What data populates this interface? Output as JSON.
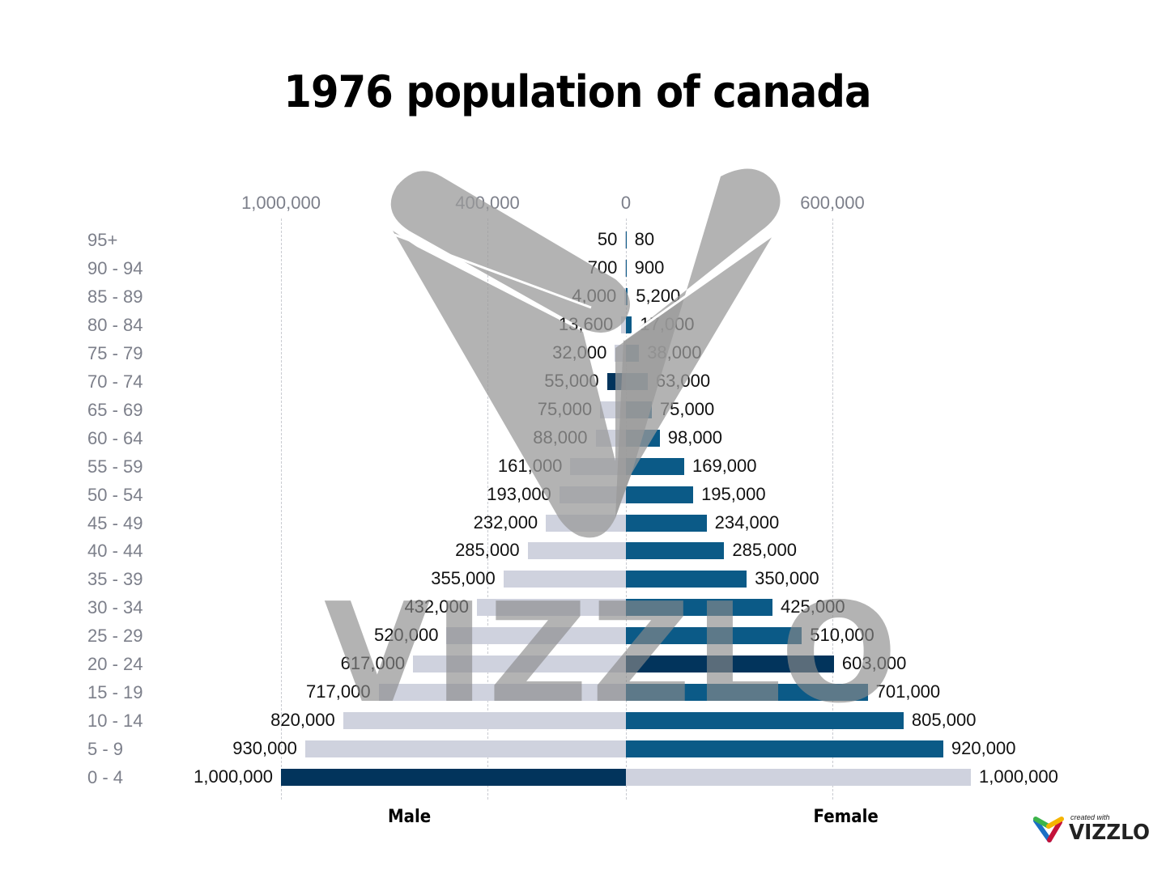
{
  "title": "1976 population of canada",
  "axis": {
    "ticks": [
      {
        "label": "1,000,000",
        "x": 347
      },
      {
        "label": "400,000",
        "x": 602
      },
      {
        "label": "0",
        "x": 773
      },
      {
        "label": "600,000",
        "x": 1028
      }
    ]
  },
  "legend": {
    "male": "Male",
    "female": "Female"
  },
  "colors": {
    "male_bar": "#cfd2de",
    "female_bar": "#0b5a87",
    "highlight_bar": "#02345c",
    "axis_text": "#7c7f8a"
  },
  "branding": {
    "created_with": "created with",
    "name": "VIZZLO",
    "watermark_text": "VIZZLO"
  },
  "rows": [
    {
      "age": "95+",
      "male_label": "50",
      "female_label": "80"
    },
    {
      "age": "90 - 94",
      "male_label": "700",
      "female_label": "900"
    },
    {
      "age": "85 - 89",
      "male_label": "4,000",
      "female_label": "5,200"
    },
    {
      "age": "80 - 84",
      "male_label": "13,600",
      "female_label": "17,000"
    },
    {
      "age": "75 - 79",
      "male_label": "32,000",
      "female_label": "38,000"
    },
    {
      "age": "70 - 74",
      "male_label": "55,000",
      "female_label": "63,000"
    },
    {
      "age": "65 - 69",
      "male_label": "75,000",
      "female_label": "75,000"
    },
    {
      "age": "60 - 64",
      "male_label": "88,000",
      "female_label": "98,000"
    },
    {
      "age": "55 - 59",
      "male_label": "161,000",
      "female_label": "169,000"
    },
    {
      "age": "50 - 54",
      "male_label": "193,000",
      "female_label": "195,000"
    },
    {
      "age": "45 - 49",
      "male_label": "232,000",
      "female_label": "234,000"
    },
    {
      "age": "40 - 44",
      "male_label": "285,000",
      "female_label": "285,000"
    },
    {
      "age": "35 - 39",
      "male_label": "355,000",
      "female_label": "350,000"
    },
    {
      "age": "30 - 34",
      "male_label": "432,000",
      "female_label": "425,000"
    },
    {
      "age": "25 - 29",
      "male_label": "520,000",
      "female_label": "510,000"
    },
    {
      "age": "20 - 24",
      "male_label": "617,000",
      "female_label": "603,000"
    },
    {
      "age": "15 - 19",
      "male_label": "717,000",
      "female_label": "701,000"
    },
    {
      "age": "10 - 14",
      "male_label": "820,000",
      "female_label": "805,000"
    },
    {
      "age": "5 - 9",
      "male_label": "930,000",
      "female_label": "920,000"
    },
    {
      "age": "0 - 4",
      "male_label": "1,000,000",
      "female_label": "1,000,000"
    }
  ],
  "chart_data": {
    "type": "bar",
    "subtype": "population-pyramid",
    "title": "1976 population of canada",
    "categories": [
      "95+",
      "90 - 94",
      "85 - 89",
      "80 - 84",
      "75 - 79",
      "70 - 74",
      "65 - 69",
      "60 - 64",
      "55 - 59",
      "50 - 54",
      "45 - 49",
      "40 - 44",
      "35 - 39",
      "30 - 34",
      "25 - 29",
      "20 - 24",
      "15 - 19",
      "10 - 14",
      "5 - 9",
      "0 - 4"
    ],
    "series": [
      {
        "name": "Male",
        "values": [
          50,
          700,
          4000,
          13600,
          32000,
          55000,
          75000,
          88000,
          161000,
          193000,
          232000,
          285000,
          355000,
          432000,
          520000,
          617000,
          717000,
          820000,
          930000,
          1000000
        ],
        "highlighted": [
          "70 - 74",
          "0 - 4"
        ]
      },
      {
        "name": "Female",
        "values": [
          80,
          900,
          5200,
          17000,
          38000,
          63000,
          75000,
          98000,
          169000,
          195000,
          234000,
          285000,
          350000,
          425000,
          510000,
          603000,
          701000,
          805000,
          920000,
          1000000
        ],
        "highlighted": [
          "20 - 24"
        ]
      }
    ],
    "xlabel": "",
    "ylabel": "",
    "x_tick_labels": [
      "1,000,000",
      "400,000",
      "0",
      "600,000"
    ],
    "xlim": [
      -1000000,
      1000000
    ],
    "grid": true,
    "legend": [
      "Male",
      "Female"
    ],
    "legend_position": "bottom",
    "orientation": "horizontal"
  }
}
